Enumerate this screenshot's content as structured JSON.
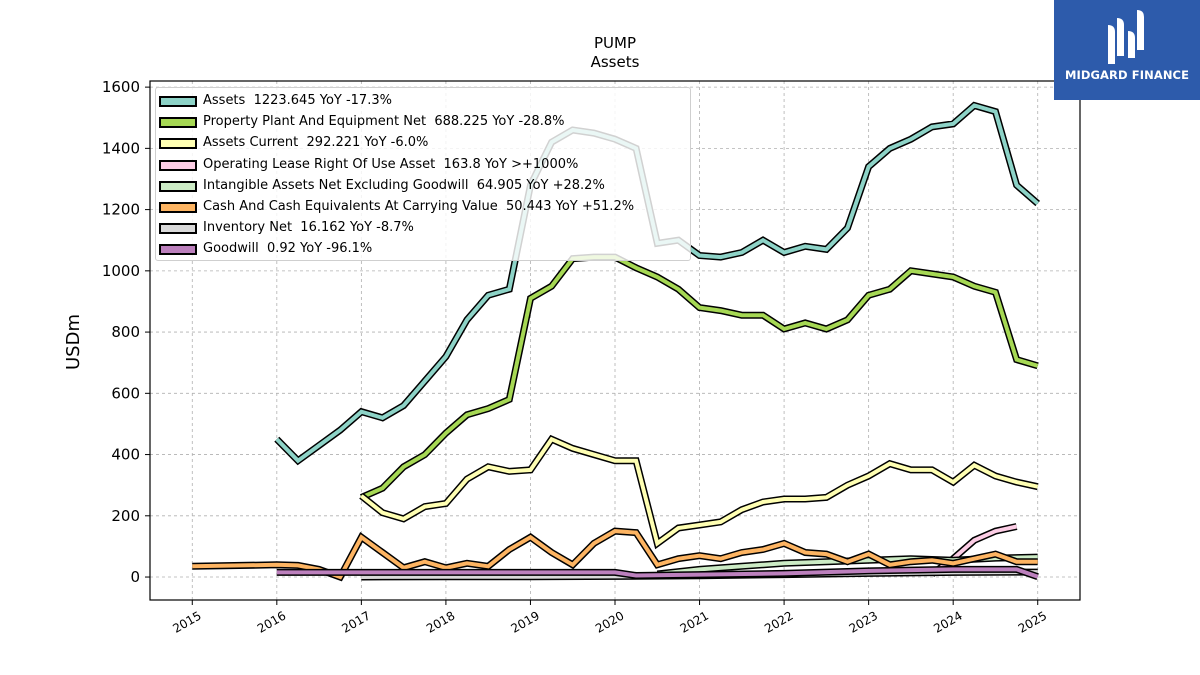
{
  "brand": {
    "name": "MIDGARD FINANCE",
    "logo_icon": "midgard-logo-icon",
    "bg_color": "#2d5bab"
  },
  "chart_data": {
    "type": "line",
    "title": "PUMP",
    "subtitle": "Assets",
    "ylabel": "USDm",
    "xlabel": "",
    "ylim": [
      -75,
      1620
    ],
    "xlim": [
      2014.5,
      2025.5
    ],
    "yticks": [
      0,
      200,
      400,
      600,
      800,
      1000,
      1200,
      1400,
      1600
    ],
    "xticks": [
      "2015",
      "2016",
      "2017",
      "2018",
      "2019",
      "2020",
      "2021",
      "2022",
      "2023",
      "2024",
      "2025"
    ],
    "grid": true,
    "legend_position": "top-left",
    "series": [
      {
        "name": "Assets  1223.645 YoY -17.3%",
        "color": "#8dd3c7",
        "x": [
          2016.0,
          2016.25,
          2016.5,
          2016.75,
          2017.0,
          2017.25,
          2017.5,
          2017.75,
          2018.0,
          2018.25,
          2018.5,
          2018.75,
          2019.0,
          2019.25,
          2019.5,
          2019.75,
          2020.0,
          2020.25,
          2020.5,
          2020.75,
          2021.0,
          2021.25,
          2021.5,
          2021.75,
          2022.0,
          2022.25,
          2022.5,
          2022.75,
          2023.0,
          2023.25,
          2023.5,
          2023.75,
          2024.0,
          2024.25,
          2024.5,
          2024.75,
          2025.0
        ],
        "y": [
          450,
          380,
          430,
          480,
          540,
          520,
          560,
          640,
          720,
          840,
          920,
          940,
          1280,
          1420,
          1460,
          1450,
          1430,
          1400,
          1090,
          1100,
          1050,
          1045,
          1060,
          1100,
          1060,
          1080,
          1070,
          1140,
          1340,
          1400,
          1430,
          1470,
          1480,
          1540,
          1520,
          1280,
          1220
        ]
      },
      {
        "name": "Property Plant And Equipment Net  688.225 YoY -28.8%",
        "color": "#a6d854",
        "x": [
          2017.0,
          2017.25,
          2017.5,
          2017.75,
          2018.0,
          2018.25,
          2018.5,
          2018.75,
          2019.0,
          2019.25,
          2019.5,
          2019.75,
          2020.0,
          2020.25,
          2020.5,
          2020.75,
          2021.0,
          2021.25,
          2021.5,
          2021.75,
          2022.0,
          2022.25,
          2022.5,
          2022.75,
          2023.0,
          2023.25,
          2023.5,
          2023.75,
          2024.0,
          2024.25,
          2024.5,
          2024.75,
          2025.0
        ],
        "y": [
          260,
          290,
          360,
          400,
          470,
          530,
          550,
          580,
          910,
          950,
          1040,
          1045,
          1045,
          1010,
          980,
          940,
          880,
          870,
          855,
          855,
          810,
          830,
          810,
          840,
          920,
          940,
          1000,
          990,
          980,
          950,
          930,
          710,
          690
        ]
      },
      {
        "name": "Assets Current  292.221 YoY -6.0%",
        "color": "#ffffb3",
        "x": [
          2017.0,
          2017.25,
          2017.5,
          2017.75,
          2018.0,
          2018.25,
          2018.5,
          2018.75,
          2019.0,
          2019.25,
          2019.5,
          2019.75,
          2020.0,
          2020.25,
          2020.5,
          2020.75,
          2021.0,
          2021.25,
          2021.5,
          2021.75,
          2022.0,
          2022.25,
          2022.5,
          2022.75,
          2023.0,
          2023.25,
          2023.5,
          2023.75,
          2024.0,
          2024.25,
          2024.5,
          2024.75,
          2025.0
        ],
        "y": [
          265,
          210,
          190,
          230,
          240,
          320,
          360,
          345,
          350,
          450,
          420,
          400,
          380,
          380,
          110,
          160,
          170,
          180,
          220,
          245,
          255,
          255,
          260,
          300,
          330,
          370,
          350,
          350,
          310,
          365,
          330,
          310,
          295
        ]
      },
      {
        "name": "Operating Lease Right Of Use Asset  163.8 YoY >+1000%",
        "color": "#fccde5",
        "x": [
          2023.75,
          2024.0,
          2024.25,
          2024.5,
          2024.75
        ],
        "y": [
          10,
          60,
          120,
          150,
          165
        ]
      },
      {
        "name": "Intangible Assets Net Excluding Goodwill  64.905 YoY +28.2%",
        "color": "#ccebc5",
        "x": [
          2020.5,
          2021.0,
          2021.5,
          2022.0,
          2022.5,
          2023.0,
          2023.5,
          2024.0,
          2024.5,
          2025.0
        ],
        "y": [
          10,
          25,
          35,
          45,
          50,
          55,
          60,
          55,
          62,
          65
        ]
      },
      {
        "name": "Cash And Cash Equivalents At Carrying Value  50.443 YoY +51.2%",
        "color": "#fdb462",
        "x": [
          2015.0,
          2016.0,
          2016.25,
          2016.5,
          2016.75,
          2017.0,
          2017.25,
          2017.5,
          2017.75,
          2018.0,
          2018.25,
          2018.5,
          2018.75,
          2019.0,
          2019.25,
          2019.5,
          2019.75,
          2020.0,
          2020.25,
          2020.5,
          2020.75,
          2021.0,
          2021.25,
          2021.5,
          2021.75,
          2022.0,
          2022.25,
          2022.5,
          2022.75,
          2023.0,
          2023.25,
          2023.5,
          2023.75,
          2024.0,
          2024.25,
          2024.5,
          2024.75,
          2025.0
        ],
        "y": [
          35,
          40,
          38,
          25,
          0,
          130,
          80,
          30,
          50,
          30,
          45,
          35,
          90,
          130,
          80,
          40,
          110,
          150,
          145,
          40,
          60,
          70,
          60,
          80,
          90,
          110,
          80,
          75,
          50,
          75,
          40,
          50,
          55,
          45,
          60,
          75,
          50,
          50
        ]
      },
      {
        "name": "Inventory Net  16.162 YoY -8.7%",
        "color": "#d9d9d9",
        "x": [
          2017.0,
          2018.0,
          2019.0,
          2020.0,
          2021.0,
          2022.0,
          2023.0,
          2024.0,
          2025.0
        ],
        "y": [
          0,
          1,
          1,
          2,
          4,
          8,
          12,
          15,
          16
        ]
      },
      {
        "name": "Goodwill  0.92 YoY -96.1%",
        "color": "#bc80bd",
        "x": [
          2016.0,
          2017.0,
          2018.0,
          2019.0,
          2019.75,
          2020.0,
          2020.25,
          2021.0,
          2022.0,
          2023.0,
          2024.0,
          2024.75,
          2025.0
        ],
        "y": [
          15,
          15,
          15,
          15,
          15,
          15,
          5,
          8,
          12,
          20,
          25,
          25,
          1
        ]
      }
    ]
  }
}
